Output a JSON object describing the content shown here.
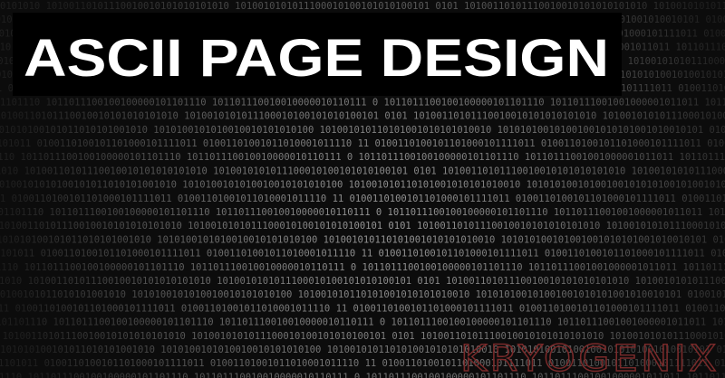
{
  "header": {
    "title": "ASCII PAGE DESIGN"
  },
  "watermark": "KRYOGENIX",
  "background_rows": [
    "0101010 10100110101110010010101010101010 1010010101011100010100101010100101 0101 10100110101110010010101010101010 10100101010111000101001010",
    "0100101010100101011010101001010 1010100101010010010101010100 101001010110101001010101010010 101010100101001001010101001010010101 01001010",
    "1101011 0100110100101101000101111011 01001101001011010001011110 11 0100110100101101000101111011 0100110100101101000101111011 010011010010",
    "0101101110 1011011100100100000101101110 101101110010010000010110111 0 1011011100100100000101101110 10110111001001000001011011 101101110010"
  ]
}
